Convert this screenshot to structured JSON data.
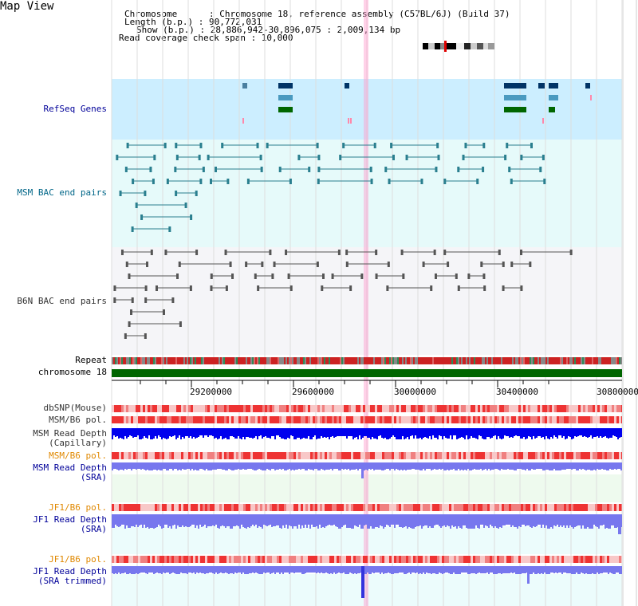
{
  "header": {
    "title": "Map View",
    "info_lines": [
      "Chromosome      : Chromosome 18, reference assembly (C57BL/6J) (Build 37)",
      "Length (b.p.) : 90,772,031",
      "Show (b.p.) : 28,886,942-30,896,075 : 2,009,134 bp",
      "Read coverage check span : 10,000"
    ]
  },
  "tracks": {
    "refseq": "RefSeq Genes",
    "msm_bac": "MSM BAC end pairs",
    "b6n_bac": "B6N BAC end pairs",
    "repeat": "Repeat",
    "chromosome": "chromosome 18",
    "dbsnp": "dbSNP(Mouse)",
    "msm_b6_pol": "MSM/B6 pol.",
    "msm_read_depth_cap": "MSM Read Depth\n(Capillary)",
    "msm_b6_pol_2": "MSM/B6 pol.",
    "msm_read_depth_sra": "MSM Read Depth\n(SRA)",
    "jf1_b6_pol": "JF1/B6 pol.",
    "jf1_read_depth_sra": "JF1 Read Depth\n(SRA)",
    "jf1_b6_pol_2": "JF1/B6 pol.",
    "jf1_read_depth_trimmed": "JF1 Read Depth\n(SRA trimmed)"
  },
  "axis": {
    "ticks": [
      "29200000",
      "29600000",
      "30000000",
      "30400000",
      "30800000"
    ]
  },
  "colors": {
    "label_dark": "#333333",
    "label_blue": "#000099",
    "label_teal": "#006688",
    "label_orange": "#e08800",
    "refseq_bg": "#cceeff",
    "msm_bac_bg": "#e6fafa",
    "b6n_bac_bg": "#f5f5f8",
    "highlight": "#ff99cc",
    "chromosome_bar": "#006600",
    "read_depth_cap": "#0000ee",
    "read_depth_sra": "#7777ee"
  }
}
